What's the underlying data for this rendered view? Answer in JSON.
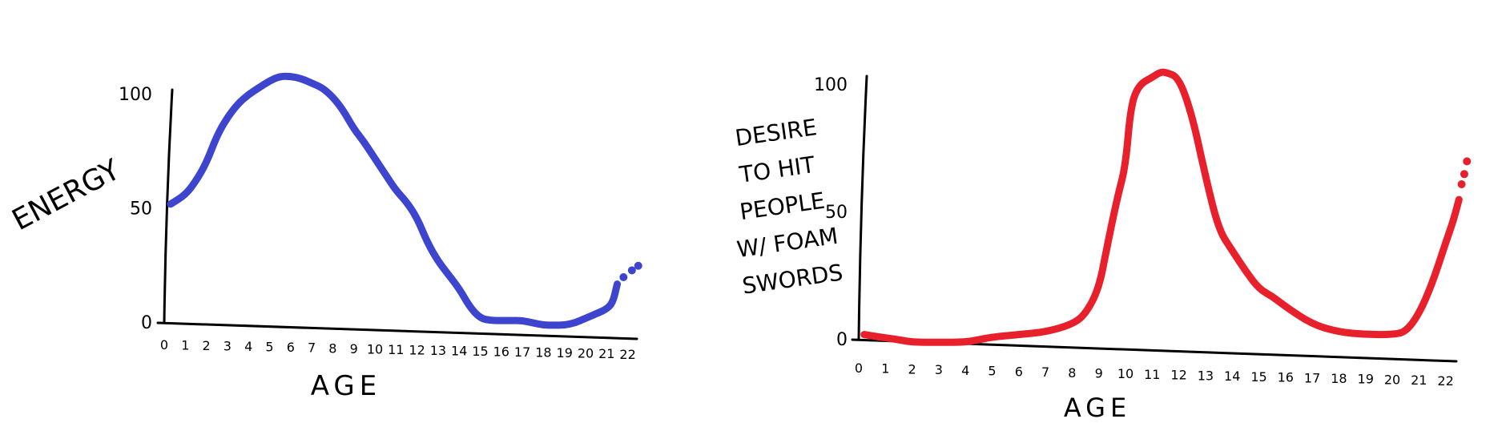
{
  "chart_data": [
    {
      "type": "line",
      "ylabel": "ENERGY",
      "xlabel": "AGE",
      "x_ticks": [
        "0",
        "1",
        "2",
        "3",
        "4",
        "5",
        "6",
        "7",
        "8",
        "9",
        "10",
        "11",
        "12",
        "13",
        "14",
        "15",
        "16",
        "17",
        "18",
        "19",
        "20",
        "21",
        "22"
      ],
      "y_ticks": [
        "0",
        "50",
        "100"
      ],
      "ylim": [
        0,
        100
      ],
      "xlim": [
        0,
        22.5
      ],
      "color": "#3d45cf",
      "series": [
        {
          "x": [
            0.3,
            1.0,
            1.5,
            2.0,
            2.5,
            3.0,
            3.5,
            4.0,
            4.5,
            5.0,
            5.5,
            6.0,
            6.5,
            7.0,
            7.5,
            8.0,
            8.5,
            9.0,
            9.5,
            10.0,
            10.5,
            11.0,
            11.5,
            12.0,
            12.5,
            13.0,
            13.5,
            14.0,
            14.5,
            15.0,
            15.5,
            16.0,
            16.5,
            17.0,
            17.5,
            18.0,
            18.5,
            19.0,
            19.5,
            20.0,
            20.5,
            21.0,
            21.3,
            21.5
          ],
          "y": [
            52,
            56,
            62,
            70,
            82,
            90,
            96,
            100,
            103,
            106,
            108,
            108,
            107,
            105,
            103,
            99,
            93,
            85,
            79,
            72,
            65,
            58,
            53,
            46,
            35,
            27,
            21,
            15,
            7,
            2,
            1,
            1,
            1,
            1,
            0,
            -1,
            -1,
            -1,
            0,
            2,
            4,
            6,
            9,
            17
          ]
        }
      ],
      "trail_points": [
        [
          21.8,
          20
        ],
        [
          22.2,
          23
        ],
        [
          22.5,
          25
        ]
      ]
    },
    {
      "type": "line",
      "ylabel": "DESIRE TO HIT PEOPLE W/ FOAM SWORDS",
      "ylabel_lines": [
        "DESIRE",
        "TO HIT",
        "PEOPLE",
        "W/ FOAM",
        "SWORDS"
      ],
      "xlabel": "AGE",
      "x_ticks": [
        "0",
        "1",
        "2",
        "3",
        "4",
        "5",
        "6",
        "7",
        "8",
        "9",
        "10",
        "11",
        "12",
        "13",
        "14",
        "15",
        "16",
        "17",
        "18",
        "19",
        "20",
        "21",
        "22"
      ],
      "y_ticks": [
        "0",
        "50",
        "100"
      ],
      "ylim": [
        0,
        100
      ],
      "xlim": [
        0,
        22.5
      ],
      "color": "#e8202c",
      "series": [
        {
          "x": [
            0.2,
            0.8,
            1.5,
            2.0,
            3.0,
            4.0,
            4.5,
            5.0,
            6.0,
            7.0,
            8.0,
            8.5,
            9.0,
            9.3,
            9.7,
            10.0,
            10.2,
            10.5,
            11.0,
            11.3,
            11.5,
            12.0,
            12.5,
            13.0,
            13.5,
            14.0,
            14.5,
            15.0,
            15.5,
            16.0,
            17.0,
            18.0,
            19.0,
            20.0,
            20.5,
            21.0,
            21.5,
            22.0,
            22.3,
            22.5
          ],
          "y": [
            2,
            1,
            0,
            -1,
            -1,
            -1,
            0,
            1,
            2,
            3,
            6,
            10,
            20,
            36,
            56,
            68,
            92,
            100,
            103,
            105,
            105,
            103,
            88,
            64,
            43,
            35,
            27,
            20,
            17,
            13,
            6,
            3,
            2,
            2,
            3,
            10,
            22,
            38,
            47,
            55
          ]
        }
      ],
      "trail_points": [
        [
          22.6,
          61
        ],
        [
          22.7,
          65
        ],
        [
          22.8,
          70
        ]
      ]
    }
  ]
}
